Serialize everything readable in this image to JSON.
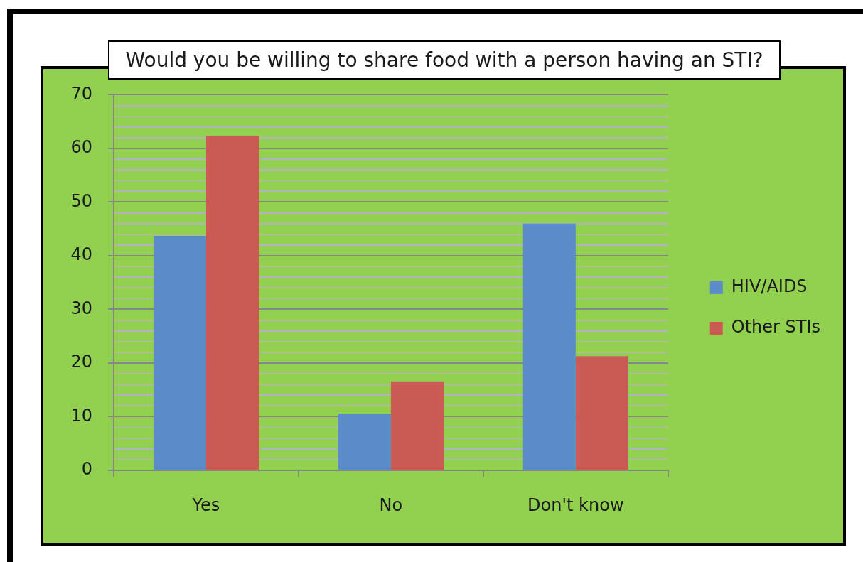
{
  "chart_data": {
    "type": "bar",
    "title": "Would you be willing to share food with a person having an STI?",
    "categories": [
      "Yes",
      "No",
      "Don't know"
    ],
    "series": [
      {
        "name": "HIV/AIDS",
        "color": "#5b8bc9",
        "values": [
          43.7,
          10.6,
          46
        ]
      },
      {
        "name": "Other STIs",
        "color": "#cb5a55",
        "values": [
          62.3,
          16.6,
          21.3
        ]
      }
    ],
    "ylim": [
      0,
      70
    ],
    "yticks": [
      0,
      {
        "value": 2,
        "label": null
      },
      {
        "value": 4,
        "label": null
      },
      {
        "value": 6,
        "label": null
      },
      {
        "value": 8,
        "label": null
      },
      10,
      {
        "value": 12,
        "label": null
      },
      {
        "value": 14,
        "label": null
      },
      {
        "value": 16,
        "label": null
      },
      {
        "value": 18,
        "label": null
      },
      20,
      {
        "value": 22,
        "label": null
      },
      {
        "value": 24,
        "label": null
      },
      {
        "value": 26,
        "label": null
      },
      {
        "value": 28,
        "label": null
      },
      30,
      {
        "value": 32,
        "label": null
      },
      {
        "value": 34,
        "label": null
      },
      {
        "value": 36,
        "label": null
      },
      {
        "value": 38,
        "label": null
      },
      40,
      {
        "value": 42,
        "label": null
      },
      {
        "value": 44,
        "label": null
      },
      {
        "value": 46,
        "label": null
      },
      {
        "value": 48,
        "label": null
      },
      50,
      {
        "value": 52,
        "label": null
      },
      {
        "value": 54,
        "label": null
      },
      {
        "value": 56,
        "label": null
      },
      {
        "value": 58,
        "label": null
      },
      60,
      {
        "value": 62,
        "label": null
      },
      {
        "value": 64,
        "label": null
      },
      {
        "value": 66,
        "label": null
      },
      {
        "value": 68,
        "label": null
      },
      70
    ],
    "grid": "y",
    "legend": "right"
  }
}
